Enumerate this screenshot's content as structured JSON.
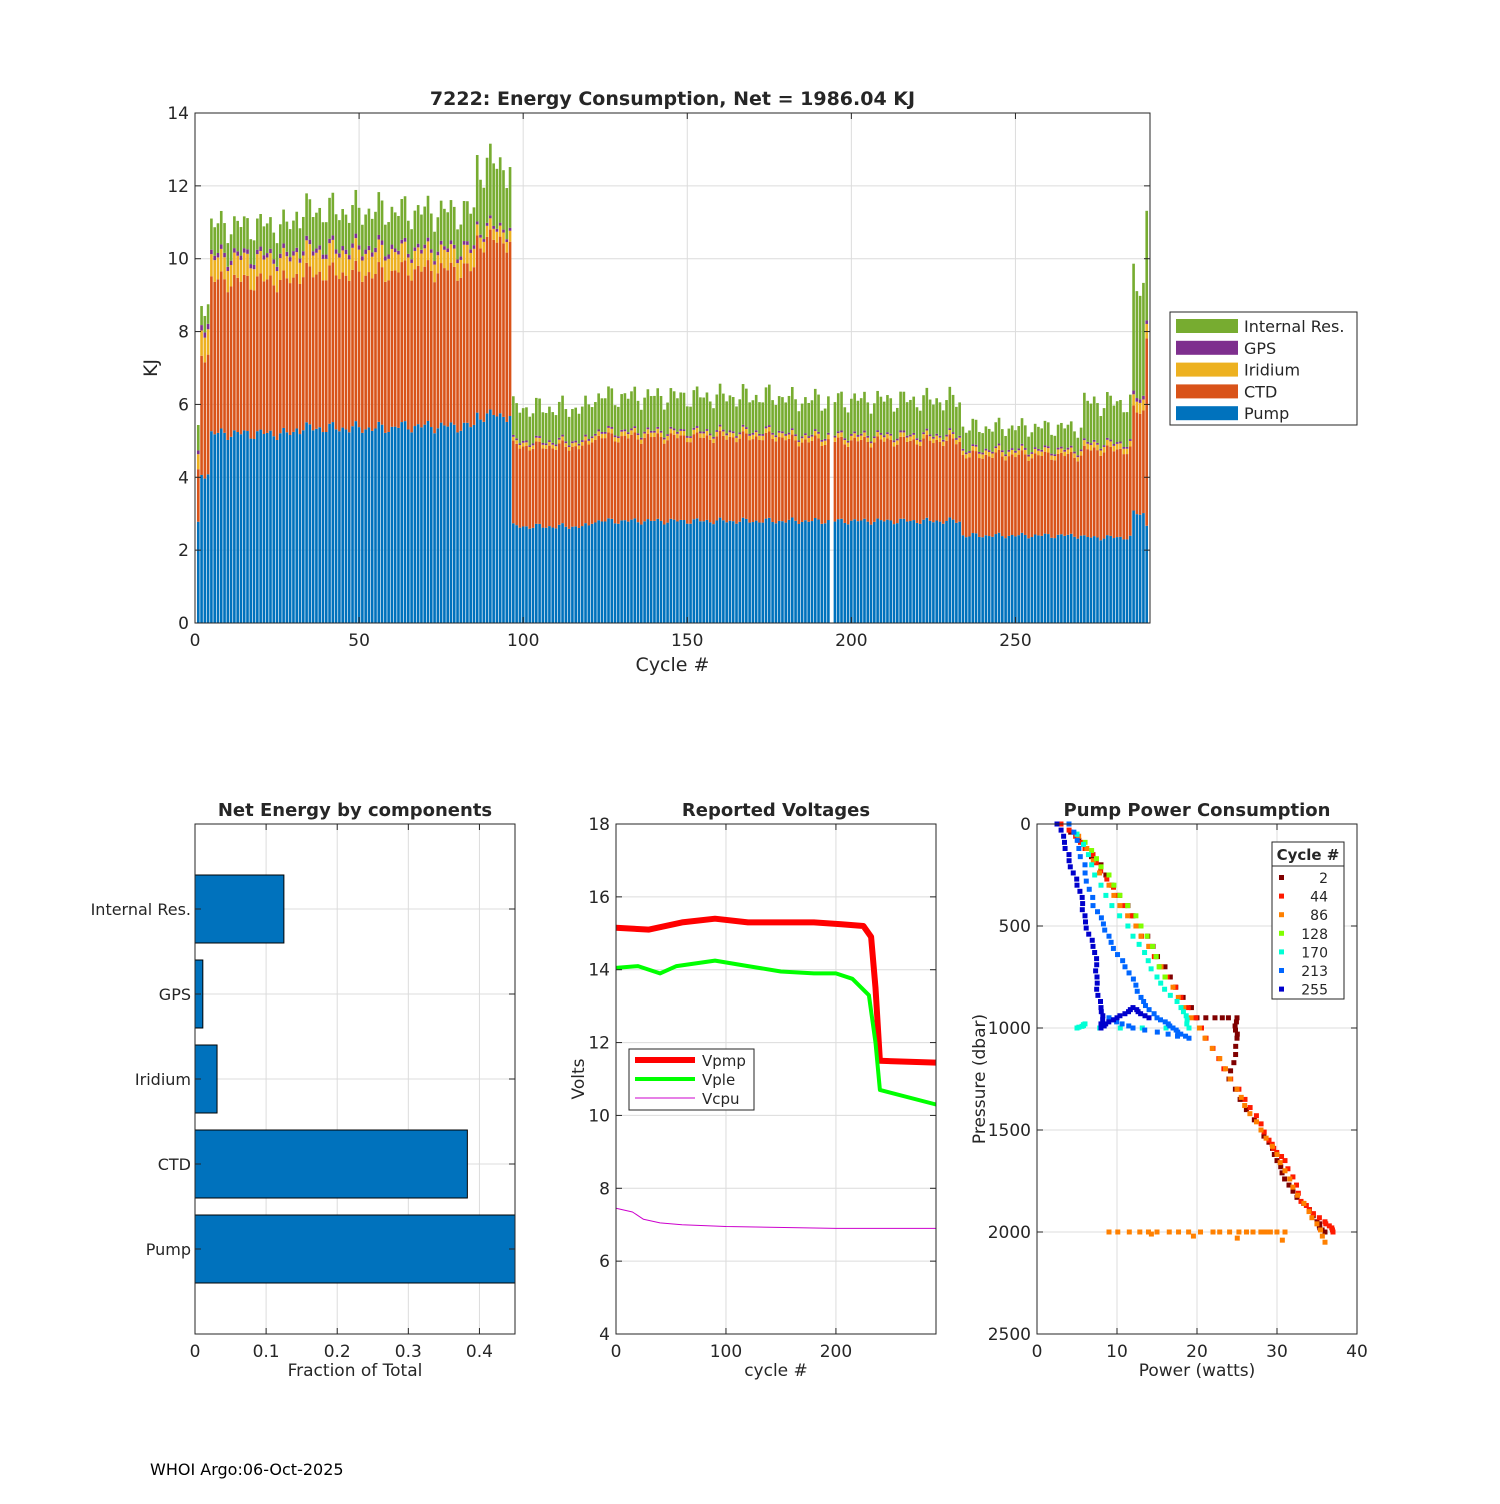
{
  "footer": "WHOI Argo:06-Oct-2025",
  "colors": {
    "pump": "#0072BD",
    "ctd": "#D95319",
    "iridium": "#EDB120",
    "gps": "#7E2F8E",
    "internal": "#77AC30",
    "vpmp": "#ff0000",
    "vple": "#00ff00",
    "vcpu": "#cc00cc",
    "grid": "#dcdcdc",
    "axis": "#262626"
  },
  "chart_data": [
    {
      "id": "energy",
      "type": "bar",
      "stacked": true,
      "title": "7222: Energy Consumption,  Net = 1986.04 KJ",
      "xlabel": "Cycle #",
      "ylabel": "KJ",
      "xlim": [
        0,
        291
      ],
      "ylim": [
        0,
        14
      ],
      "xticks": [
        0,
        50,
        100,
        150,
        200,
        250
      ],
      "yticks": [
        0,
        2,
        4,
        6,
        8,
        10,
        12,
        14
      ],
      "legend_position": "right",
      "legend": [
        "Internal Res.",
        "GPS",
        "Iridium",
        "CTD",
        "Pump"
      ],
      "series_order": [
        "Pump",
        "CTD",
        "Iridium",
        "GPS",
        "Internal Res."
      ],
      "segments": [
        {
          "from": 1,
          "to": 1,
          "Pump": 2.7,
          "CTD": 1.4,
          "Iridium": 0.4,
          "GPS": 0.1,
          "Internal Res.": 0.6
        },
        {
          "from": 2,
          "to": 4,
          "Pump": 4.1,
          "CTD": 3.3,
          "Iridium": 0.7,
          "GPS": 0.15,
          "Internal Res.": 0.55
        },
        {
          "from": 5,
          "to": 30,
          "Pump": 5.2,
          "CTD": 4.2,
          "Iridium": 0.6,
          "GPS": 0.12,
          "Internal Res.": 0.8
        },
        {
          "from": 31,
          "to": 60,
          "Pump": 5.35,
          "CTD": 4.25,
          "Iridium": 0.6,
          "GPS": 0.12,
          "Internal Res.": 1.0
        },
        {
          "from": 61,
          "to": 85,
          "Pump": 5.4,
          "CTD": 4.3,
          "Iridium": 0.5,
          "GPS": 0.1,
          "Internal Res.": 1.0
        },
        {
          "from": 86,
          "to": 96,
          "Pump": 5.7,
          "CTD": 4.8,
          "Iridium": 0.3,
          "GPS": 0.08,
          "Internal Res.": 1.7
        },
        {
          "from": 97,
          "to": 120,
          "Pump": 2.65,
          "CTD": 2.2,
          "Iridium": 0.1,
          "GPS": 0.05,
          "Internal Res.": 0.9
        },
        {
          "from": 121,
          "to": 180,
          "Pump": 2.8,
          "CTD": 2.3,
          "Iridium": 0.12,
          "GPS": 0.05,
          "Internal Res.": 0.95
        },
        {
          "from": 181,
          "to": 233,
          "Pump": 2.8,
          "CTD": 2.2,
          "Iridium": 0.12,
          "GPS": 0.05,
          "Internal Res.": 0.95
        },
        {
          "from": 234,
          "to": 270,
          "Pump": 2.4,
          "CTD": 2.2,
          "Iridium": 0.12,
          "GPS": 0.05,
          "Internal Res.": 0.6
        },
        {
          "from": 271,
          "to": 285,
          "Pump": 2.35,
          "CTD": 2.4,
          "Iridium": 0.15,
          "GPS": 0.05,
          "Internal Res.": 1.1
        },
        {
          "from": 286,
          "to": 289,
          "Pump": 3.0,
          "CTD": 2.8,
          "Iridium": 0.3,
          "GPS": 0.1,
          "Internal Res.": 3.0
        },
        {
          "from": 290,
          "to": 290,
          "Pump": 2.7,
          "CTD": 5.2,
          "Iridium": 0.4,
          "GPS": 0.1,
          "Internal Res.": 3.2
        }
      ],
      "missing_cycles": [
        194
      ]
    },
    {
      "id": "components",
      "type": "bar",
      "orientation": "horizontal",
      "title": "Net Energy by components",
      "xlabel": "Fraction of Total",
      "categories": [
        "Internal Res.",
        "GPS",
        "Iridium",
        "CTD",
        "Pump"
      ],
      "values": [
        0.125,
        0.011,
        0.031,
        0.383,
        0.45
      ],
      "xlim": [
        0,
        0.45
      ],
      "xticks": [
        0,
        0.1,
        0.2,
        0.3,
        0.4
      ]
    },
    {
      "id": "voltages",
      "type": "line",
      "title": "Reported Voltages",
      "xlabel": "cycle #",
      "ylabel": "Volts",
      "xlim": [
        0,
        291
      ],
      "ylim": [
        4,
        18
      ],
      "xticks": [
        0,
        100,
        200
      ],
      "yticks": [
        4,
        6,
        8,
        10,
        12,
        14,
        16,
        18
      ],
      "legend_position": "left",
      "series": [
        {
          "name": "Vpmp",
          "x": [
            0,
            30,
            60,
            90,
            120,
            150,
            180,
            205,
            225,
            232,
            236,
            240,
            291
          ],
          "y": [
            15.15,
            15.1,
            15.3,
            15.4,
            15.3,
            15.3,
            15.3,
            15.25,
            15.2,
            14.9,
            13.5,
            11.5,
            11.45
          ]
        },
        {
          "name": "Vple",
          "x": [
            0,
            20,
            40,
            55,
            90,
            120,
            150,
            180,
            200,
            215,
            230,
            236,
            240,
            291
          ],
          "y": [
            14.05,
            14.1,
            13.9,
            14.1,
            14.25,
            14.1,
            13.95,
            13.9,
            13.9,
            13.75,
            13.3,
            12.0,
            10.7,
            10.3
          ]
        },
        {
          "name": "Vcpu",
          "x": [
            0,
            15,
            25,
            40,
            60,
            100,
            200,
            291
          ],
          "y": [
            7.45,
            7.35,
            7.15,
            7.05,
            7.0,
            6.95,
            6.9,
            6.9
          ]
        }
      ]
    },
    {
      "id": "pump_power",
      "type": "scatter",
      "title": "Pump Power Consumption",
      "xlabel": "Power (watts)",
      "ylabel": "Pressure (dbar)",
      "xlim": [
        0,
        40
      ],
      "ylim": [
        0,
        2500
      ],
      "y_reversed": true,
      "xticks": [
        0,
        10,
        20,
        30,
        40
      ],
      "yticks": [
        0,
        500,
        1000,
        1500,
        2000,
        2500
      ],
      "legend_title": "Cycle #",
      "legend_position": "top-right",
      "series": [
        {
          "name": "2",
          "color": "#800000",
          "points": [
            [
              3,
              0
            ],
            [
              8,
              200
            ],
            [
              12,
              450
            ],
            [
              16,
              700
            ],
            [
              20,
              950
            ],
            [
              25,
              950
            ],
            [
              25,
              1050
            ],
            [
              24,
              1250
            ],
            [
              28,
              1500
            ],
            [
              30,
              1650
            ],
            [
              32,
              1800
            ],
            [
              35,
              1950
            ],
            [
              36,
              2000
            ]
          ]
        },
        {
          "name": "44",
          "color": "#ff1a00",
          "points": [
            [
              3,
              0
            ],
            [
              7,
              150
            ],
            [
              10,
              350
            ],
            [
              14,
              600
            ],
            [
              18,
              850
            ],
            [
              22,
              1100
            ],
            [
              26,
              1350
            ],
            [
              29,
              1550
            ],
            [
              31,
              1650
            ],
            [
              33,
              1850
            ],
            [
              36,
              1950
            ],
            [
              37,
              2000
            ]
          ]
        },
        {
          "name": "86",
          "color": "#ff8000",
          "points": [
            [
              4,
              0
            ],
            [
              9,
              300
            ],
            [
              13,
              550
            ],
            [
              17,
              800
            ],
            [
              21,
              1050
            ],
            [
              25,
              1300
            ],
            [
              28,
              1500
            ],
            [
              31,
              1700
            ],
            [
              34,
              1900
            ],
            [
              36,
              2050
            ],
            [
              9,
              2000
            ],
            [
              15,
              2000
            ],
            [
              22,
              2000
            ],
            [
              27,
              2000
            ],
            [
              31,
              2000
            ]
          ]
        },
        {
          "name": "128",
          "color": "#80ff00",
          "points": [
            [
              5,
              50
            ],
            [
              9,
              250
            ],
            [
              13,
              500
            ],
            [
              16,
              750
            ]
          ]
        },
        {
          "name": "170",
          "color": "#00ffd5",
          "points": [
            [
              5,
              50
            ],
            [
              8,
              300
            ],
            [
              12,
              550
            ],
            [
              15,
              750
            ],
            [
              18,
              900
            ],
            [
              19,
              1000
            ],
            [
              5,
              1000
            ],
            [
              6,
              980
            ]
          ]
        },
        {
          "name": "213",
          "color": "#0066ff",
          "points": [
            [
              4,
              0
            ],
            [
              6,
              200
            ],
            [
              7,
              400
            ],
            [
              9,
              550
            ],
            [
              11,
              700
            ],
            [
              13,
              850
            ],
            [
              15,
              950
            ],
            [
              17,
              1000
            ],
            [
              19,
              1050
            ],
            [
              12,
              1000
            ],
            [
              9,
              950
            ]
          ]
        },
        {
          "name": "255",
          "color": "#0000cc",
          "points": [
            [
              2.5,
              0
            ],
            [
              4,
              150
            ],
            [
              5,
              300
            ],
            [
              6,
              450
            ],
            [
              7,
              600
            ],
            [
              7.5,
              750
            ],
            [
              8,
              900
            ],
            [
              8,
              1000
            ],
            [
              10,
              950
            ],
            [
              12,
              900
            ],
            [
              14,
              950
            ]
          ]
        }
      ]
    }
  ]
}
